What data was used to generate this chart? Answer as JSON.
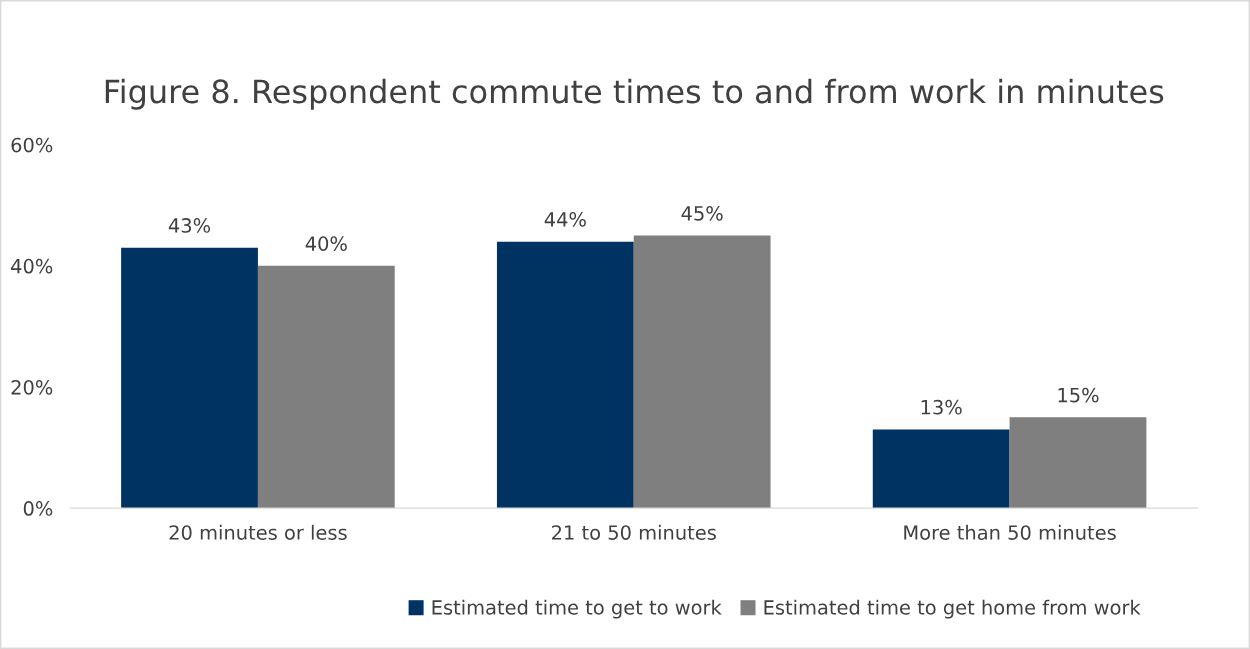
{
  "chart_data": {
    "type": "bar",
    "title": "Figure 8. Respondent commute times to and from work in minutes",
    "categories": [
      "20 minutes or less",
      "21 to 50 minutes",
      "More than 50 minutes"
    ],
    "series": [
      {
        "name": "Estimated time to get to work",
        "color": "#003262",
        "values": [
          43,
          44,
          13
        ],
        "value_labels": [
          "43%",
          "44%",
          "13%"
        ]
      },
      {
        "name": "Estimated time to get home from work",
        "color": "#7f7f7f",
        "values": [
          40,
          45,
          15
        ],
        "value_labels": [
          "40%",
          "45%",
          "15%"
        ]
      }
    ],
    "ylim": [
      0,
      60
    ],
    "yticks": [
      {
        "value": 0,
        "label": "0%"
      },
      {
        "value": 20,
        "label": "20%"
      },
      {
        "value": 40,
        "label": "40%"
      },
      {
        "value": 60,
        "label": "60%"
      }
    ],
    "grid": false,
    "legend": "bottom"
  }
}
